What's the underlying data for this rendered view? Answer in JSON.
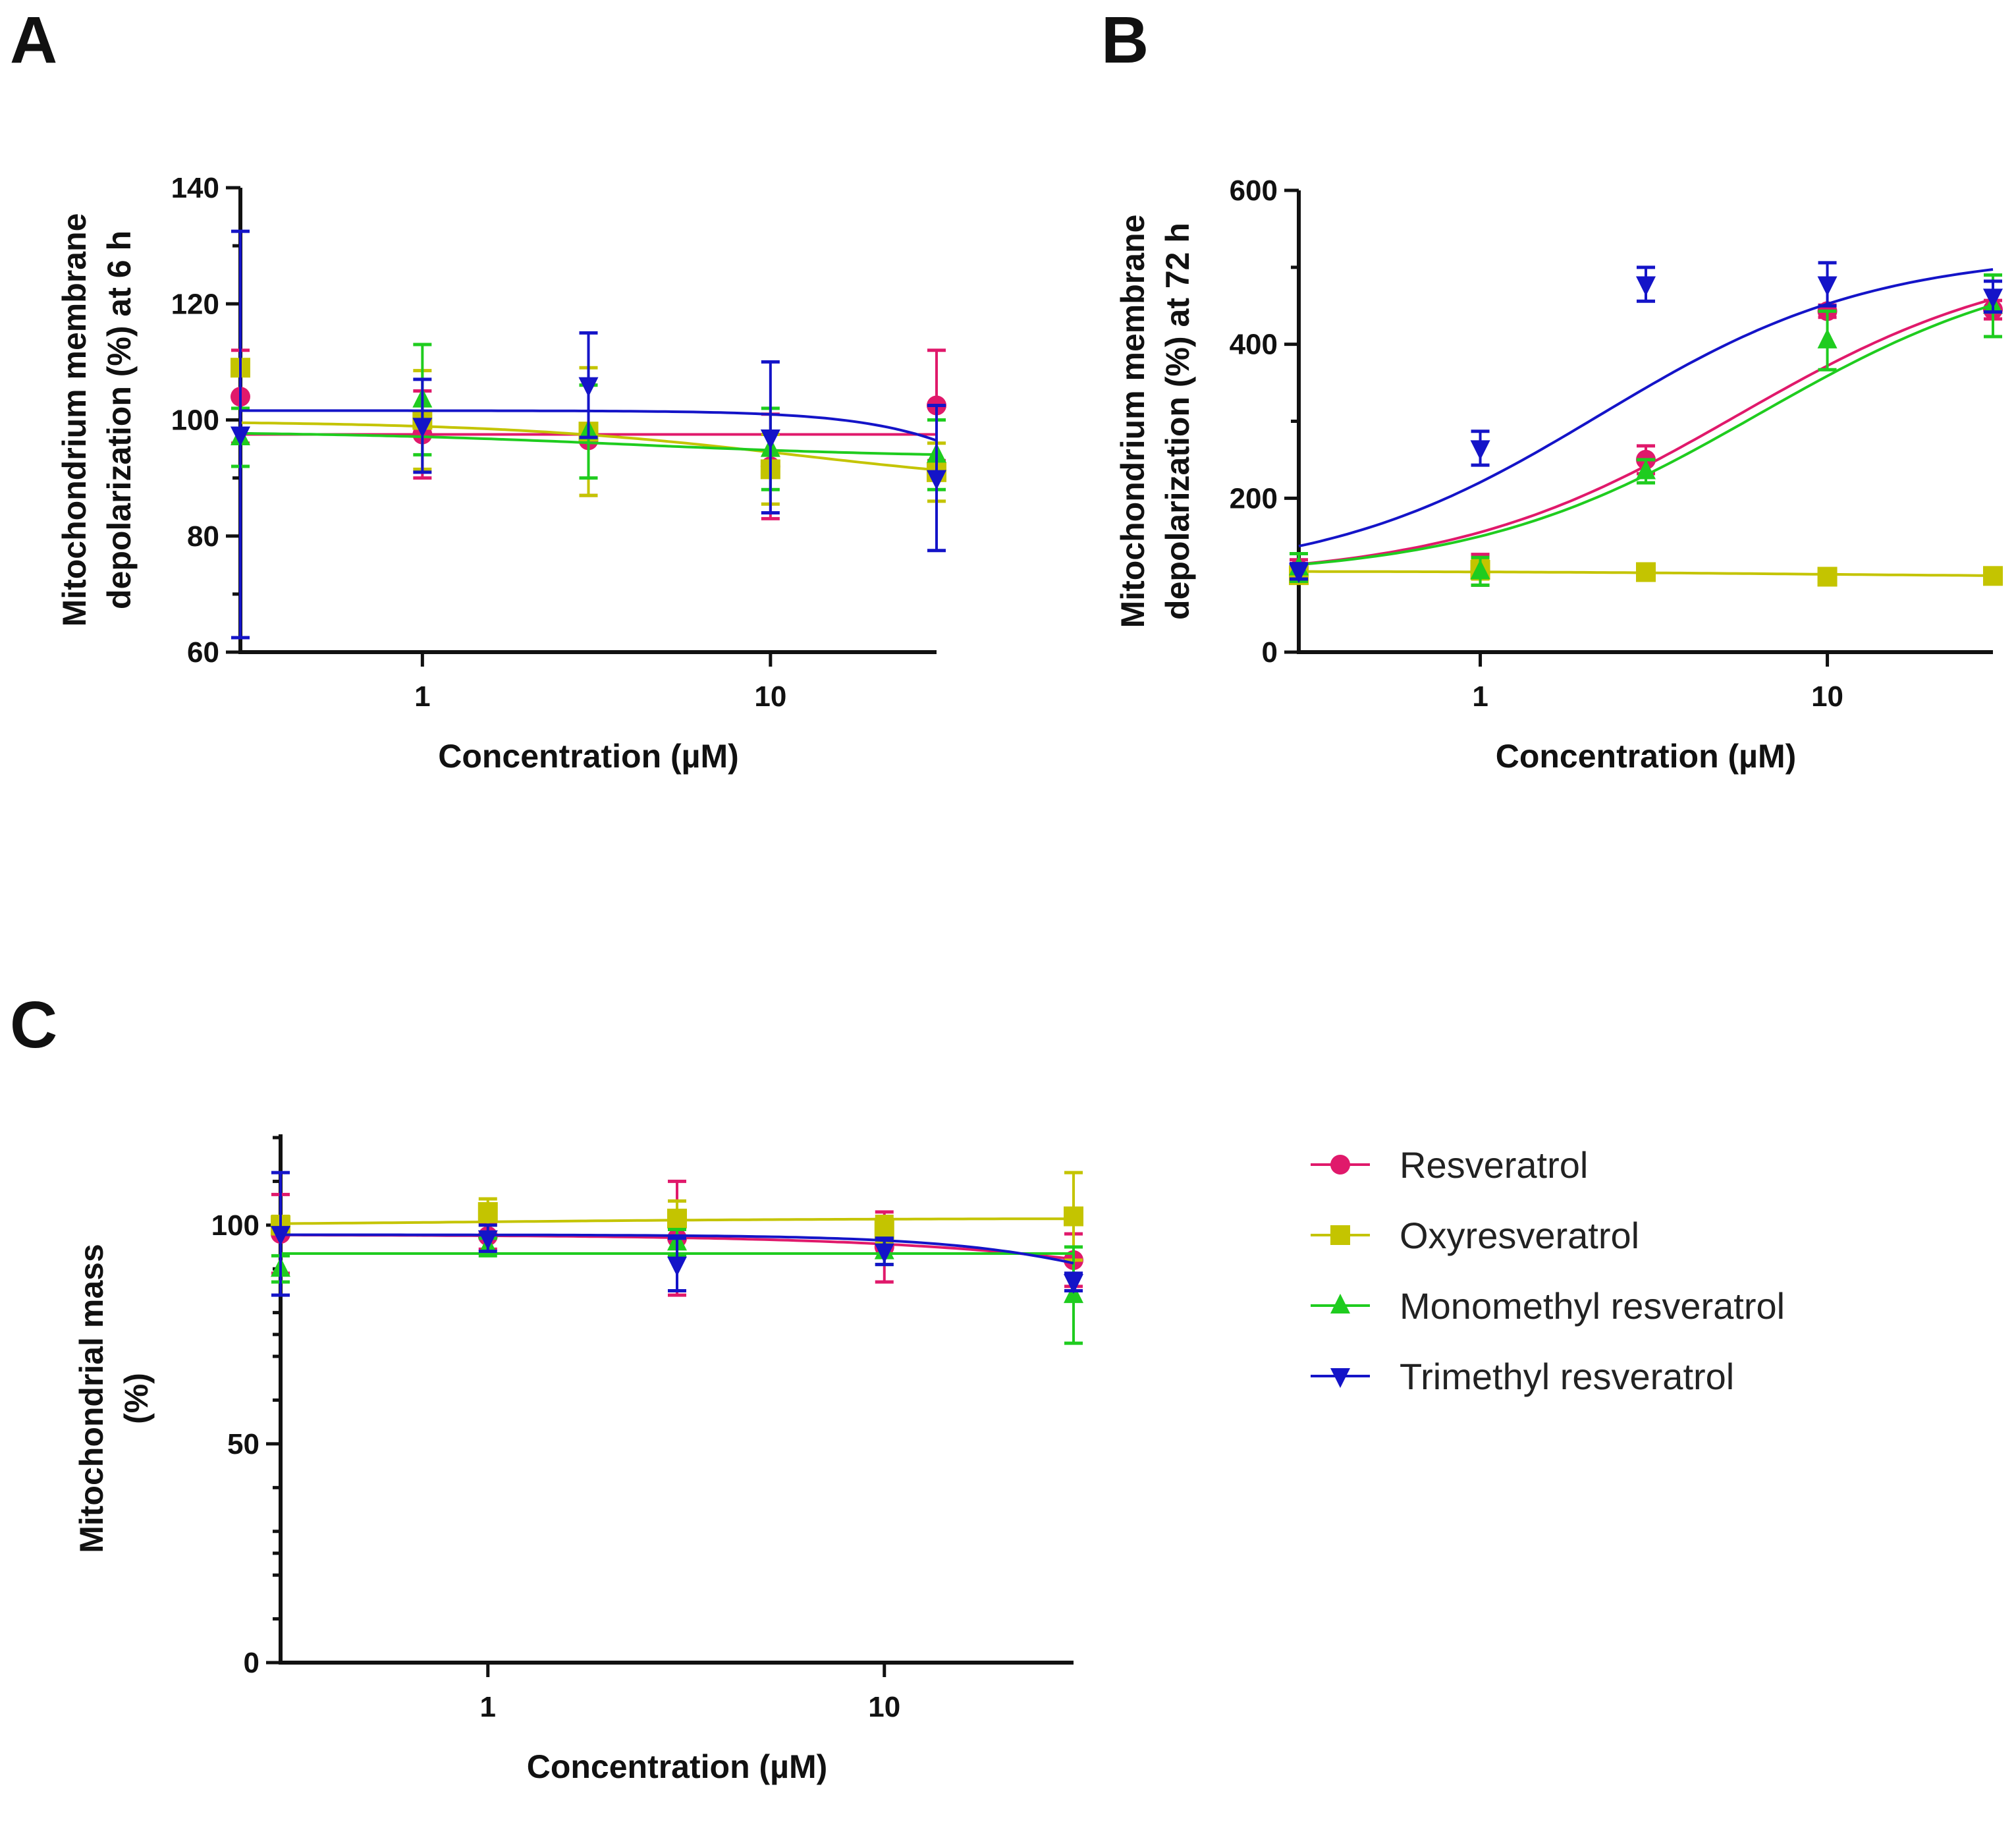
{
  "colors": {
    "Resveratrol": "#e0196b",
    "Oxyresveratrol": "#c4c400",
    "Monomethyl resveratrol": "#1fcc1f",
    "Trimethyl resveratrol": "#1414c8"
  },
  "legend": [
    "Resveratrol",
    "Oxyresveratrol",
    "Monomethyl resveratrol",
    "Trimethyl resveratrol"
  ],
  "chart_data": [
    {
      "panel": "A",
      "type": "scatter",
      "xlabel": "Concentration (µM)",
      "ylabel": [
        "Mitochondrium membrane",
        "depolarization (%) at 6 h"
      ],
      "xscale": "log",
      "xlim": [
        0.3,
        30
      ],
      "ylim": [
        60,
        140
      ],
      "xticks": [
        1,
        10
      ],
      "xtick_labels": [
        "1",
        "10"
      ],
      "yticks": [
        60,
        80,
        100,
        120,
        140
      ],
      "ytick_labels": [
        "60",
        "80",
        "100",
        "120",
        "140"
      ],
      "x": [
        0.3,
        1,
        3,
        10,
        30
      ],
      "series": [
        {
          "name": "Resveratrol",
          "marker": "circle",
          "values": [
            104,
            97.5,
            96.5,
            92,
            102.5
          ],
          "errors": [
            8,
            7.5,
            9.5,
            9,
            9.5
          ],
          "fit": {
            "bottom": 97.5,
            "top": 97.5,
            "ec50": 10,
            "hill": 1
          }
        },
        {
          "name": "Oxyresveratrol",
          "marker": "square",
          "values": [
            109,
            100,
            98,
            91.5,
            91
          ],
          "errors": [
            1,
            8.5,
            11,
            6,
            5
          ],
          "fit": {
            "bottom": 99.8,
            "top": 88,
            "ec50": 12,
            "hill": 1
          }
        },
        {
          "name": "Monomethyl resveratrol",
          "marker": "triangle-up",
          "values": [
            97,
            103.5,
            98,
            95,
            94
          ],
          "errors": [
            5,
            9.5,
            8,
            7,
            6
          ],
          "fit": {
            "bottom": 98,
            "top": 93.5,
            "ec50": 4,
            "hill": 1
          }
        },
        {
          "name": "Trimethyl resveratrol",
          "marker": "triangle-down",
          "values": [
            97.5,
            99,
            106,
            97,
            90
          ],
          "errors": [
            35,
            8,
            9,
            13,
            12.5
          ],
          "fit": {
            "bottom": 101.6,
            "top": 60,
            "ec50": 80,
            "hill": 2
          }
        }
      ]
    },
    {
      "panel": "B",
      "type": "scatter",
      "xlabel": "Concentration (µM)",
      "ylabel": [
        "Mitochondrium membrane",
        "depolarization (%) at 72 h"
      ],
      "xscale": "log",
      "xlim": [
        0.3,
        30
      ],
      "ylim": [
        0,
        600
      ],
      "xticks": [
        1,
        10
      ],
      "xtick_labels": [
        "1",
        "10"
      ],
      "yticks": [
        0,
        200,
        400,
        600
      ],
      "ytick_labels": [
        "0",
        "200",
        "400",
        "600"
      ],
      "x": [
        0.3,
        1,
        3,
        10,
        30
      ],
      "series": [
        {
          "name": "Resveratrol",
          "marker": "circle",
          "values": [
            108,
            107,
            250,
            443,
            445
          ],
          "errors": [
            12,
            20,
            18,
            8,
            12
          ],
          "fit": {
            "bottom": 95,
            "top": 520,
            "ec50": 5.5,
            "hill": 1.05
          }
        },
        {
          "name": "Oxyresveratrol",
          "marker": "square",
          "values": [
            100,
            107,
            104,
            98,
            99
          ],
          "errors": [
            8,
            12,
            4,
            4,
            4
          ],
          "fit": {
            "bottom": 105,
            "top": 98,
            "ec50": 8,
            "hill": 1
          }
        },
        {
          "name": "Monomethyl resveratrol",
          "marker": "triangle-up",
          "values": [
            110,
            105,
            235,
            405,
            450
          ],
          "errors": [
            18,
            18,
            15,
            38,
            40
          ],
          "fit": {
            "bottom": 97,
            "top": 520,
            "ec50": 6.3,
            "hill": 1.05
          }
        },
        {
          "name": "Trimethyl resveratrol",
          "marker": "triangle-down",
          "values": [
            105,
            265,
            478,
            478,
            462
          ],
          "errors": [
            10,
            22,
            22,
            28,
            20
          ],
          "fit": {
            "bottom": 95,
            "top": 520,
            "ec50": 2.2,
            "hill": 1.1
          }
        }
      ]
    },
    {
      "panel": "C",
      "type": "scatter",
      "xlabel": "Concentration (µM)",
      "ylabel": [
        "Mitochondrial mass",
        "(%)"
      ],
      "xscale": "log",
      "xlim": [
        0.3,
        30
      ],
      "ylim": [
        0,
        120
      ],
      "xticks": [
        1,
        10
      ],
      "xtick_labels": [
        "1",
        "10"
      ],
      "yticks": [
        0,
        50,
        100
      ],
      "ytick_labels": [
        "0",
        "50",
        "100"
      ],
      "x": [
        0.3,
        1,
        3,
        10,
        30
      ],
      "series": [
        {
          "name": "Resveratrol",
          "marker": "circle",
          "values": [
            98,
            97.5,
            97,
            95,
            92
          ],
          "errors": [
            9,
            3,
            13,
            8,
            6
          ],
          "fit": {
            "bottom": 97.8,
            "top": 70,
            "ec50": 120,
            "hill": 1
          }
        },
        {
          "name": "Oxyresveratrol",
          "marker": "square",
          "values": [
            100,
            103,
            101.5,
            99,
            102
          ],
          "errors": [
            2,
            3,
            4,
            3,
            10
          ],
          "fit": {
            "bottom": 100,
            "top": 101.5,
            "ec50": 1,
            "hill": 1
          }
        },
        {
          "name": "Monomethyl resveratrol",
          "marker": "triangle-up",
          "values": [
            90,
            95,
            96,
            94,
            84
          ],
          "errors": [
            3,
            2,
            3,
            3,
            11
          ],
          "fit": {
            "bottom": 93.5,
            "top": 93.5,
            "ec50": 10,
            "hill": 1
          }
        },
        {
          "name": "Trimethyl resveratrol",
          "marker": "triangle-down",
          "values": [
            98,
            97,
            91,
            94,
            87
          ],
          "errors": [
            14,
            3,
            6,
            3,
            2
          ],
          "fit": {
            "bottom": 97.8,
            "top": 60,
            "ec50": 80,
            "hill": 1.6
          }
        }
      ]
    }
  ]
}
